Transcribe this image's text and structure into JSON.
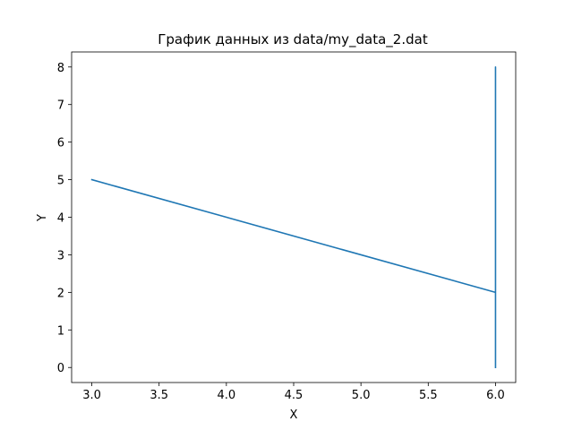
{
  "chart_data": {
    "type": "line",
    "title": "График данных из data/my_data_2.dat",
    "xlabel": "X",
    "ylabel": "Y",
    "xlim": [
      2.85,
      6.15
    ],
    "ylim": [
      -0.4,
      8.4
    ],
    "x_ticks": [
      3.0,
      3.5,
      4.0,
      4.5,
      5.0,
      5.5,
      6.0
    ],
    "x_tick_labels": [
      "3.0",
      "3.5",
      "4.0",
      "4.5",
      "5.0",
      "5.5",
      "6.0"
    ],
    "y_ticks": [
      0,
      1,
      2,
      3,
      4,
      5,
      6,
      7,
      8
    ],
    "y_tick_labels": [
      "0",
      "1",
      "2",
      "3",
      "4",
      "5",
      "6",
      "7",
      "8"
    ],
    "grid": false,
    "series": [
      {
        "color": "#1f77b4",
        "x": [
          3.0,
          6.0,
          6.0,
          6.0,
          6.0,
          6.0,
          6.0,
          6.0,
          6.0,
          6.0,
          6.0
        ],
        "y": [
          5,
          2,
          0,
          8,
          0,
          8,
          0,
          8,
          0,
          8,
          0
        ]
      }
    ]
  }
}
